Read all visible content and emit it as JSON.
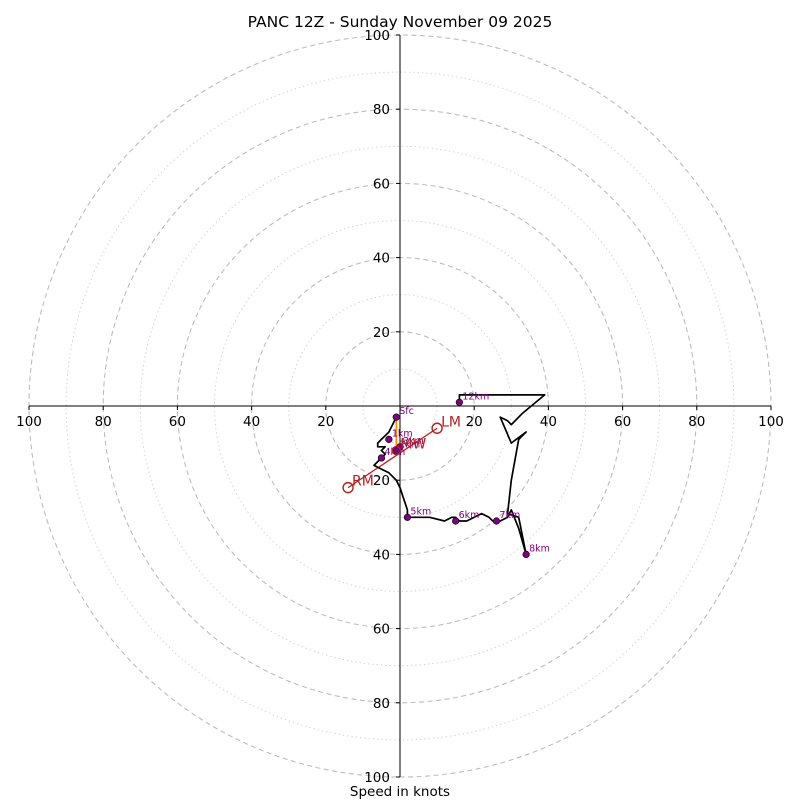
{
  "chart_data": {
    "type": "scatter",
    "subtype": "hodograph",
    "title": "PANC 12Z - Sunday November 09 2025",
    "xlabel": "Speed in knots",
    "ylabel": "",
    "xlim": [
      -100,
      100
    ],
    "ylim": [
      -100,
      100
    ],
    "grid": true,
    "major_rings": [
      20,
      40,
      60,
      80,
      100
    ],
    "minor_rings": [
      10,
      30,
      50,
      70,
      90
    ],
    "x_ticks": [
      {
        "value": -100,
        "label": "100"
      },
      {
        "value": -80,
        "label": "80"
      },
      {
        "value": -60,
        "label": "60"
      },
      {
        "value": -40,
        "label": "40"
      },
      {
        "value": -20,
        "label": "20"
      },
      {
        "value": 20,
        "label": "20"
      },
      {
        "value": 40,
        "label": "40"
      },
      {
        "value": 60,
        "label": "60"
      },
      {
        "value": 80,
        "label": "80"
      },
      {
        "value": 100,
        "label": "100"
      }
    ],
    "y_ticks": [
      {
        "value": 100,
        "label": "100"
      },
      {
        "value": 80,
        "label": "80"
      },
      {
        "value": 60,
        "label": "60"
      },
      {
        "value": 40,
        "label": "40"
      },
      {
        "value": 20,
        "label": "20"
      },
      {
        "value": -20,
        "label": "20"
      },
      {
        "value": -40,
        "label": "40"
      },
      {
        "value": -60,
        "label": "60"
      },
      {
        "value": -80,
        "label": "80"
      },
      {
        "value": -100,
        "label": "100"
      }
    ],
    "series": [
      {
        "name": "hodograph",
        "color": "#000000",
        "u": [
          -1,
          -2,
          -3,
          -5,
          -6,
          -6,
          -4,
          -5,
          -4,
          -5,
          -7,
          -5,
          -3,
          -1,
          0,
          1,
          2,
          2,
          3,
          5,
          8,
          12,
          14,
          15,
          16,
          18,
          20,
          22,
          24,
          25,
          27,
          29,
          30,
          32,
          34,
          32,
          29,
          30,
          32,
          34,
          30,
          27,
          29,
          30,
          33,
          39,
          16,
          16
        ],
        "v": [
          -3,
          -5,
          -7,
          -9,
          -10,
          -11,
          -11,
          -12,
          -13,
          -14,
          -16,
          -17,
          -18,
          -20,
          -22,
          -25,
          -28,
          -30,
          -30,
          -30,
          -30,
          -31,
          -30,
          -30,
          -31,
          -31,
          -30,
          -29,
          -30,
          -31,
          -31,
          -30,
          -28,
          -33,
          -40,
          -30,
          -29,
          -20,
          -9,
          -7,
          -10,
          -3,
          -4,
          -5,
          -2,
          3,
          3,
          1
        ]
      },
      {
        "name": "height markers",
        "color": "#800080",
        "points": [
          {
            "label": "Sfc",
            "u": -1,
            "v": -3
          },
          {
            "label": "1km",
            "u": -3,
            "v": -9
          },
          {
            "label": "2km",
            "u": -1,
            "v": -12
          },
          {
            "label": "3km",
            "u": 0,
            "v": -11
          },
          {
            "label": "4km",
            "u": -5,
            "v": -14
          },
          {
            "label": "5km",
            "u": 2,
            "v": -30
          },
          {
            "label": "6km",
            "u": 15,
            "v": -31
          },
          {
            "label": "7km",
            "u": 26,
            "v": -31
          },
          {
            "label": "8km",
            "u": 34,
            "v": -40
          },
          {
            "label": "12km",
            "u": 16,
            "v": 1
          }
        ]
      },
      {
        "name": "storm motion",
        "color": "#b22222",
        "points": [
          {
            "label": "LM",
            "u": 10,
            "v": -6
          },
          {
            "label": "RM",
            "u": -14,
            "v": -22
          },
          {
            "label": "MW",
            "u": -1,
            "v": -12
          }
        ]
      }
    ],
    "sfc_shear_vector": {
      "color": "#ff8c00",
      "from": {
        "u": -1,
        "v": -3
      },
      "to": {
        "u": -1,
        "v": -12
      }
    },
    "bunkers_vector": {
      "color": "#b22222",
      "from": {
        "u": -14,
        "v": -22
      },
      "to": {
        "u": 10,
        "v": -6
      }
    }
  }
}
